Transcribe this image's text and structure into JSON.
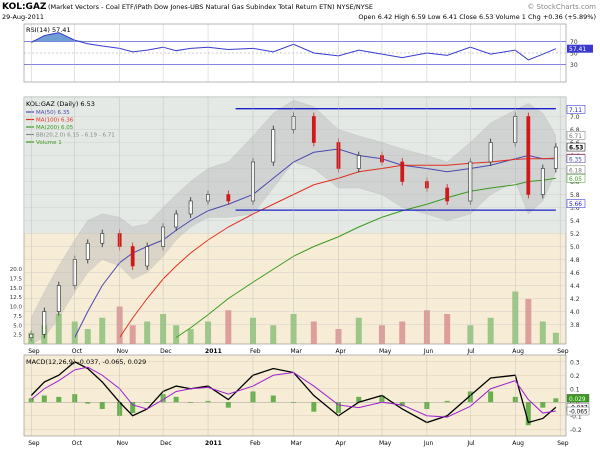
{
  "header": {
    "symbol": "KOL:GAZ",
    "description": "(Market Vectors - Coal ETF/iPath Dow Jones-UBS Natural Gas Subindex Total Return ETN)  NYSE/NYSE",
    "watermark": "© StockCharts.com",
    "date": "29-Aug-2011",
    "ohlc": "Open 6.42   High 6.59   Low 6.41   Close 6.53   Volume 1   Chg +0.36 (+5.89%)"
  },
  "chart_data": [
    {
      "id": "rsi",
      "type": "line",
      "label": "RSI(14) 57.41",
      "ylim": [
        0,
        100
      ],
      "yticks": [
        30,
        50,
        70
      ],
      "reference_lines": [
        30,
        50,
        70
      ],
      "last_value": "57.41",
      "colors": {
        "line": "#3a3ad0",
        "fill_over": "#4a86c8",
        "background": "#ffffff"
      },
      "x": [
        "2010-09-01",
        "2010-09-10",
        "2010-09-20",
        "2010-10-01",
        "2010-10-10",
        "2010-10-20",
        "2010-11-01",
        "2010-11-10",
        "2010-11-20",
        "2010-12-01",
        "2010-12-10",
        "2010-12-20",
        "2011-01-01",
        "2011-01-15",
        "2011-02-01",
        "2011-02-15",
        "2011-03-01",
        "2011-03-15",
        "2011-04-01",
        "2011-04-15",
        "2011-05-01",
        "2011-05-15",
        "2011-06-01",
        "2011-06-15",
        "2011-07-01",
        "2011-07-15",
        "2011-08-01",
        "2011-08-10",
        "2011-08-20",
        "2011-08-29"
      ],
      "values": [
        68,
        80,
        85,
        72,
        66,
        62,
        58,
        52,
        55,
        60,
        54,
        58,
        60,
        56,
        58,
        52,
        65,
        50,
        45,
        55,
        48,
        42,
        50,
        46,
        60,
        48,
        55,
        38,
        48,
        57.41
      ]
    },
    {
      "id": "price",
      "type": "candlestick",
      "title": "KOL:GAZ (Daily) 6.53",
      "xlabel": "",
      "ylabel": "",
      "ylim": [
        3.5,
        7.3
      ],
      "yticks": [
        3.8,
        4.0,
        4.2,
        4.4,
        4.6,
        4.8,
        5.0,
        5.2,
        5.4,
        5.6,
        5.8,
        6.0,
        6.2,
        6.4,
        6.6,
        6.8,
        7.0
      ],
      "legend_position": "top-left",
      "legend": [
        "MA(50) 6.35",
        "MA(100) 6.36",
        "MA(200) 6.05",
        "BB(20,2.0) 6.15 - 6.19 - 6.71",
        "Volume 1"
      ],
      "price_labels": [
        "7.11",
        "6.71",
        "6.53",
        "6.36",
        "6.35",
        "6.18",
        "6.05",
        "5.66"
      ],
      "trendlines": [
        {
          "y": 7.12,
          "from": "2011-01-20",
          "to": "2011-08-29"
        },
        {
          "y": 5.56,
          "from": "2011-01-20",
          "to": "2011-08-29"
        }
      ],
      "x": [
        "2010-09-01",
        "2010-09-10",
        "2010-09-20",
        "2010-10-01",
        "2010-10-10",
        "2010-10-20",
        "2010-11-01",
        "2010-11-10",
        "2010-11-20",
        "2010-12-01",
        "2010-12-10",
        "2010-12-20",
        "2011-01-01",
        "2011-01-15",
        "2011-02-01",
        "2011-02-15",
        "2011-03-01",
        "2011-03-15",
        "2011-04-01",
        "2011-04-15",
        "2011-05-01",
        "2011-05-15",
        "2011-06-01",
        "2011-06-15",
        "2011-07-01",
        "2011-07-15",
        "2011-08-01",
        "2011-08-10",
        "2011-08-20",
        "2011-08-29"
      ],
      "close": [
        3.65,
        4.0,
        4.4,
        4.8,
        5.05,
        5.2,
        5.0,
        4.7,
        5.0,
        5.3,
        5.5,
        5.7,
        5.8,
        5.7,
        6.3,
        6.8,
        7.0,
        6.6,
        6.2,
        6.4,
        6.3,
        6.0,
        5.9,
        5.7,
        6.3,
        6.6,
        7.0,
        5.8,
        6.2,
        6.53
      ],
      "series": [
        {
          "name": "MA(50) 6.35",
          "color": "#4a4ab0",
          "values": [
            null,
            null,
            null,
            3.6,
            4.0,
            4.4,
            4.75,
            4.9,
            5.0,
            5.1,
            5.25,
            5.4,
            5.55,
            5.65,
            5.8,
            6.05,
            6.3,
            6.45,
            6.5,
            6.4,
            6.35,
            6.25,
            6.2,
            6.15,
            6.2,
            6.25,
            6.35,
            6.4,
            6.35,
            6.35
          ]
        },
        {
          "name": "MA(100) 6.36",
          "color": "#e03020",
          "values": [
            null,
            null,
            null,
            null,
            null,
            null,
            3.6,
            3.9,
            4.2,
            4.5,
            4.7,
            4.9,
            5.1,
            5.3,
            5.5,
            5.65,
            5.8,
            5.95,
            6.05,
            6.15,
            6.2,
            6.25,
            6.25,
            6.25,
            6.28,
            6.3,
            6.34,
            6.35,
            6.35,
            6.36
          ]
        },
        {
          "name": "MA(200) 6.05",
          "color": "#3a9a20",
          "values": [
            null,
            null,
            null,
            null,
            null,
            null,
            null,
            null,
            null,
            null,
            3.6,
            3.75,
            3.95,
            4.2,
            4.45,
            4.65,
            4.85,
            5.0,
            5.15,
            5.3,
            5.45,
            5.55,
            5.65,
            5.75,
            5.85,
            5.9,
            5.95,
            6.0,
            6.02,
            6.05
          ]
        }
      ],
      "bollinger": {
        "upper": [
          3.9,
          4.3,
          4.7,
          5.1,
          5.4,
          5.5,
          5.45,
          5.3,
          5.35,
          5.6,
          5.8,
          6.0,
          6.2,
          6.3,
          6.7,
          7.05,
          7.25,
          7.15,
          6.8,
          6.7,
          6.6,
          6.5,
          6.4,
          6.3,
          6.6,
          6.9,
          7.1,
          7.2,
          7.05,
          6.71
        ],
        "lower": [
          3.5,
          3.6,
          3.9,
          4.3,
          4.6,
          4.8,
          4.7,
          4.5,
          4.6,
          4.85,
          5.1,
          5.3,
          5.45,
          5.45,
          5.5,
          5.9,
          6.3,
          6.2,
          5.9,
          5.9,
          5.8,
          5.6,
          5.5,
          5.4,
          5.5,
          5.8,
          6.0,
          5.5,
          5.7,
          6.15
        ]
      },
      "volume": {
        "label": "Volume 1",
        "ylim": [
          0,
          20
        ],
        "yticks": [
          2.5,
          5.0,
          7.5,
          10.0,
          12.5,
          15.0,
          17.5,
          20.0
        ],
        "values": [
          3,
          5,
          8,
          6,
          4,
          7,
          10,
          5,
          6,
          8,
          5,
          4,
          6,
          9,
          7,
          5,
          8,
          6,
          4,
          7,
          5,
          6,
          9,
          8,
          5,
          7,
          14,
          12,
          6,
          3
        ]
      },
      "colors": {
        "background_upper": "#d7e6ef",
        "background_lower": "#f7edd6",
        "band": "#b9b9b9",
        "trendline": "#1a20c8",
        "up": "#2a2a2a",
        "down": "#d01818"
      }
    },
    {
      "id": "macd",
      "type": "line",
      "label": "MACD(12,26,9) -0.037, -0.065, 0.029",
      "ylim": [
        -0.25,
        0.35
      ],
      "yticks": [
        -0.2,
        -0.1,
        0.0,
        0.1,
        0.2,
        0.3
      ],
      "value_labels": [
        "0.029",
        "-0.037",
        "-0.065"
      ],
      "x": [
        "2010-09-01",
        "2010-09-10",
        "2010-09-20",
        "2010-10-01",
        "2010-10-10",
        "2010-10-20",
        "2010-11-01",
        "2010-11-10",
        "2010-11-20",
        "2010-12-01",
        "2010-12-10",
        "2010-12-20",
        "2011-01-01",
        "2011-01-15",
        "2011-02-01",
        "2011-02-15",
        "2011-03-01",
        "2011-03-15",
        "2011-04-01",
        "2011-04-15",
        "2011-05-01",
        "2011-05-15",
        "2011-06-01",
        "2011-06-15",
        "2011-07-01",
        "2011-07-15",
        "2011-08-01",
        "2011-08-10",
        "2011-08-20",
        "2011-08-29"
      ],
      "series": [
        {
          "name": "MACD",
          "color": "#000000",
          "values": [
            0.05,
            0.15,
            0.2,
            0.3,
            0.25,
            0.15,
            0.0,
            -0.1,
            -0.05,
            0.08,
            0.12,
            0.1,
            0.12,
            0.02,
            0.2,
            0.25,
            0.22,
            0.05,
            -0.1,
            0.0,
            0.05,
            -0.05,
            -0.15,
            -0.1,
            0.05,
            0.18,
            0.2,
            -0.15,
            -0.12,
            -0.037
          ]
        },
        {
          "name": "Signal",
          "color": "#a020d0",
          "values": [
            0.02,
            0.1,
            0.16,
            0.24,
            0.26,
            0.2,
            0.1,
            -0.02,
            -0.05,
            0.02,
            0.08,
            0.1,
            0.11,
            0.06,
            0.12,
            0.2,
            0.22,
            0.12,
            -0.02,
            -0.04,
            0.0,
            -0.02,
            -0.1,
            -0.11,
            -0.03,
            0.1,
            0.16,
            0.02,
            -0.08,
            -0.065
          ]
        }
      ],
      "histogram": [
        0.03,
        0.05,
        0.04,
        0.06,
        -0.01,
        -0.05,
        -0.1,
        -0.08,
        0.0,
        0.06,
        0.04,
        0.0,
        0.01,
        -0.04,
        0.08,
        0.05,
        0.0,
        -0.07,
        -0.08,
        0.04,
        0.05,
        -0.03,
        -0.05,
        0.01,
        0.08,
        0.08,
        0.04,
        -0.17,
        -0.04,
        0.029
      ],
      "colors": {
        "background": "#f7edd6",
        "histogram": "#3a9a20"
      }
    }
  ],
  "x_axis": {
    "month_labels": [
      "Sep",
      "Oct",
      "Nov",
      "Dec",
      "2011",
      "Feb",
      "Mar",
      "Apr",
      "May",
      "Jun",
      "Jul",
      "Aug",
      "Sep"
    ],
    "month_dates": [
      "2010-09-01",
      "2010-10-01",
      "2010-11-01",
      "2010-12-01",
      "2011-01-01",
      "2011-02-01",
      "2011-03-01",
      "2011-04-01",
      "2011-05-01",
      "2011-06-01",
      "2011-07-01",
      "2011-08-01",
      "2011-09-01"
    ],
    "start": "2010-08-27",
    "end": "2011-09-05"
  }
}
